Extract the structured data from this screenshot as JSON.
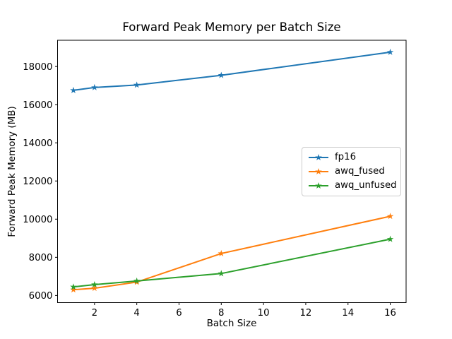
{
  "chart_data": {
    "type": "line",
    "title": "Forward Peak Memory per Batch Size",
    "xlabel": "Batch Size",
    "ylabel": "Forward Peak Memory (MB)",
    "x": [
      1,
      2,
      4,
      8,
      16
    ],
    "series": [
      {
        "name": "fp16",
        "color": "#1f77b4",
        "values": [
          16750,
          16900,
          17030,
          17540,
          18750
        ]
      },
      {
        "name": "awq_fused",
        "color": "#ff7f0e",
        "values": [
          6300,
          6380,
          6700,
          8200,
          10150
        ]
      },
      {
        "name": "awq_unfused",
        "color": "#2ca02c",
        "values": [
          6450,
          6570,
          6760,
          7150,
          8950
        ]
      }
    ],
    "xticks": [
      2,
      4,
      6,
      8,
      10,
      12,
      14,
      16
    ],
    "yticks": [
      6000,
      8000,
      10000,
      12000,
      14000,
      16000,
      18000
    ],
    "xlim": [
      0.25,
      16.75
    ],
    "ylim": [
      5625,
      19375
    ],
    "marker": "star",
    "grid": false,
    "legend_position": "center-right",
    "legend": [
      "fp16",
      "awq_fused",
      "awq_unfused"
    ],
    "axis_color": "#000000",
    "background_color": "#ffffff"
  }
}
